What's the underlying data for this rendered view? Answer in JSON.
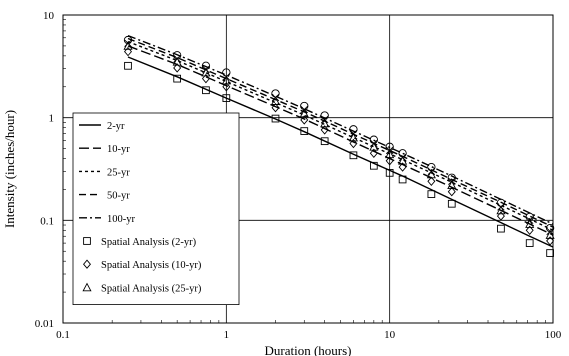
{
  "chart_data": {
    "type": "line",
    "xlabel": "Duration (hours)",
    "ylabel": "Intensity (inches/hour)",
    "x_scale": "log",
    "y_scale": "log",
    "xlim": [
      0.1,
      100
    ],
    "ylim": [
      0.01,
      10
    ],
    "x_ticks": [
      0.1,
      1,
      10,
      100
    ],
    "x_tick_labels": [
      "0.1",
      "1",
      "10",
      "100"
    ],
    "y_ticks": [
      0.01,
      0.1,
      1,
      10
    ],
    "y_tick_labels": [
      "0.01",
      "0.1",
      "1",
      "10"
    ],
    "grid": true,
    "legend_position": "left-center",
    "series": [
      {
        "name": "2-yr",
        "kind": "curve",
        "dash": "solid",
        "x": [
          0.25,
          0.5,
          1,
          2,
          3,
          6,
          12,
          24,
          48,
          72,
          100
        ],
        "y": [
          3.9,
          2.5,
          1.55,
          0.97,
          0.73,
          0.44,
          0.27,
          0.16,
          0.095,
          0.07,
          0.055
        ]
      },
      {
        "name": "10-yr",
        "kind": "curve",
        "dash": "long-dash",
        "x": [
          0.25,
          0.5,
          1,
          2,
          3,
          6,
          12,
          24,
          48,
          72,
          100
        ],
        "y": [
          5.0,
          3.3,
          2.05,
          1.28,
          0.97,
          0.58,
          0.35,
          0.21,
          0.125,
          0.092,
          0.072
        ]
      },
      {
        "name": "25-yr",
        "kind": "curve",
        "dash": "short-dash",
        "x": [
          0.25,
          0.5,
          1,
          2,
          3,
          6,
          12,
          24,
          48,
          72,
          100
        ],
        "y": [
          5.5,
          3.6,
          2.25,
          1.4,
          1.06,
          0.64,
          0.39,
          0.235,
          0.14,
          0.103,
          0.08
        ]
      },
      {
        "name": "50-yr",
        "kind": "curve",
        "dash": "dash",
        "x": [
          0.25,
          0.5,
          1,
          2,
          3,
          6,
          12,
          24,
          48,
          72,
          100
        ],
        "y": [
          5.9,
          3.85,
          2.4,
          1.5,
          1.14,
          0.69,
          0.42,
          0.25,
          0.15,
          0.11,
          0.086
        ]
      },
      {
        "name": "100-yr",
        "kind": "curve",
        "dash": "dash-dot",
        "x": [
          0.25,
          0.5,
          1,
          2,
          3,
          6,
          12,
          24,
          48,
          72,
          100
        ],
        "y": [
          6.3,
          4.1,
          2.6,
          1.62,
          1.22,
          0.74,
          0.45,
          0.27,
          0.16,
          0.118,
          0.092
        ]
      },
      {
        "name": "Spatial Analysis (2-yr)",
        "kind": "marker",
        "marker": "square",
        "x": [
          0.25,
          0.5,
          0.75,
          1,
          2,
          3,
          4,
          6,
          8,
          10,
          12,
          18,
          24,
          48,
          72,
          96
        ],
        "y": [
          3.2,
          2.4,
          1.85,
          1.55,
          0.98,
          0.74,
          0.59,
          0.43,
          0.34,
          0.29,
          0.25,
          0.18,
          0.145,
          0.083,
          0.06,
          0.048
        ]
      },
      {
        "name": "Spatial Analysis (10-yr)",
        "kind": "marker",
        "marker": "diamond",
        "x": [
          0.25,
          0.5,
          0.75,
          1,
          2,
          3,
          4,
          6,
          8,
          10,
          12,
          18,
          24,
          48,
          72,
          96
        ],
        "y": [
          4.4,
          3.05,
          2.4,
          2.0,
          1.25,
          0.95,
          0.76,
          0.56,
          0.45,
          0.38,
          0.33,
          0.24,
          0.19,
          0.11,
          0.08,
          0.063
        ]
      },
      {
        "name": "Spatial Analysis (25-yr)",
        "kind": "marker",
        "marker": "triangle",
        "x": [
          0.25,
          0.5,
          0.75,
          1,
          2,
          3,
          4,
          6,
          8,
          10,
          12,
          18,
          24,
          48,
          72,
          96
        ],
        "y": [
          5.0,
          3.5,
          2.75,
          2.3,
          1.45,
          1.1,
          0.88,
          0.64,
          0.52,
          0.44,
          0.38,
          0.28,
          0.22,
          0.125,
          0.092,
          0.072
        ]
      },
      {
        "name": "",
        "kind": "marker",
        "marker": "x",
        "x": [
          0.25,
          0.5,
          0.75,
          1,
          2,
          3,
          4,
          6,
          8,
          10,
          12,
          18,
          24,
          48,
          72,
          96
        ],
        "y": [
          5.3,
          3.75,
          2.95,
          2.5,
          1.57,
          1.2,
          0.96,
          0.7,
          0.56,
          0.48,
          0.41,
          0.3,
          0.24,
          0.135,
          0.1,
          0.078
        ]
      },
      {
        "name": "",
        "kind": "marker",
        "marker": "circle",
        "x": [
          0.25,
          0.5,
          0.75,
          1,
          2,
          3,
          4,
          6,
          8,
          10,
          12,
          18,
          24,
          48,
          72,
          96
        ],
        "y": [
          5.7,
          4.05,
          3.2,
          2.75,
          1.72,
          1.3,
          1.05,
          0.77,
          0.61,
          0.52,
          0.45,
          0.33,
          0.26,
          0.148,
          0.108,
          0.084
        ]
      }
    ]
  }
}
